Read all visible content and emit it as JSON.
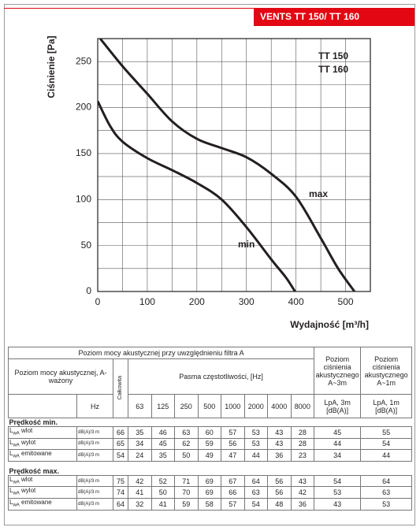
{
  "header": {
    "title": "VENTS TT 150/ TT 160"
  },
  "chart_data": {
    "type": "line",
    "models": [
      "TT 150",
      "TT 160"
    ],
    "y_label": "Ciśnienie [Pa]",
    "x_label": "Wydajność [m³/h]",
    "xlim": [
      0,
      550
    ],
    "ylim": [
      0,
      275
    ],
    "xticks": [
      0,
      100,
      200,
      300,
      400,
      500
    ],
    "yticks": [
      0,
      50,
      100,
      150,
      200,
      250
    ],
    "grid": true,
    "series": [
      {
        "name": "max",
        "color": "#231f20",
        "x": [
          5,
          50,
          100,
          150,
          200,
          250,
          300,
          350,
          400,
          450,
          485,
          518
        ],
        "values": [
          275,
          245,
          215,
          185,
          166,
          156,
          146,
          128,
          103,
          58,
          25,
          0
        ]
      },
      {
        "name": "min",
        "color": "#231f20",
        "x": [
          0,
          25,
          50,
          100,
          150,
          200,
          250,
          300,
          350,
          380,
          398
        ],
        "values": [
          207,
          180,
          163,
          145,
          132,
          118,
          100,
          70,
          35,
          15,
          0
        ]
      }
    ]
  },
  "table": {
    "title": "Poziom mocy akustycznej przy uwzględnieniu filtra A",
    "pressure_3m": "Poziom ciśnienia akustycznego A~3m",
    "pressure_1m": "Poziom ciśnienia akustycznego A~1m",
    "power_label": "Poziom mocy akustycznej, A-ważony",
    "total": "Całkowita",
    "bands_label": "Pasma częstotliwości, [Hz]",
    "hz": "Hz",
    "bands": [
      63,
      125,
      250,
      500,
      1000,
      2000,
      4000,
      8000
    ],
    "lpa_3m": "LpA, 3m [dB(A)]",
    "lpa_1m": "LpA, 1m [dB(A)]",
    "sections": [
      {
        "title": "Prędkość min.",
        "rows": [
          {
            "symbol": "L",
            "sub": "wA",
            "name": "wlot",
            "unit": "dB(A)/3 m",
            "values": [
              66,
              35,
              46,
              63,
              60,
              57,
              53,
              43,
              28,
              45,
              55
            ]
          },
          {
            "symbol": "L",
            "sub": "wA",
            "name": "wylot",
            "unit": "dB(A)/3 m",
            "values": [
              65,
              34,
              45,
              62,
              59,
              56,
              53,
              43,
              28,
              44,
              54
            ]
          },
          {
            "symbol": "L",
            "sub": "wA",
            "name": "emitowane",
            "unit": "dB(A)/3 m",
            "values": [
              54,
              24,
              35,
              50,
              49,
              47,
              44,
              36,
              23,
              34,
              44
            ]
          }
        ]
      },
      {
        "title": "Prędkość max.",
        "rows": [
          {
            "symbol": "L",
            "sub": "wA",
            "name": "wlot",
            "unit": "dB(A)/3 m",
            "values": [
              75,
              42,
              52,
              71,
              69,
              67,
              64,
              56,
              43,
              54,
              64
            ]
          },
          {
            "symbol": "L",
            "sub": "wA",
            "name": "wylot",
            "unit": "dB(A)/3 m",
            "values": [
              74,
              41,
              50,
              70,
              69,
              66,
              63,
              56,
              42,
              53,
              63
            ]
          },
          {
            "symbol": "L",
            "sub": "wA",
            "name": "emitowane",
            "unit": "dB(A)/3 m",
            "values": [
              64,
              32,
              41,
              59,
              58,
              57,
              54,
              48,
              36,
              43,
              53
            ]
          }
        ]
      }
    ]
  }
}
